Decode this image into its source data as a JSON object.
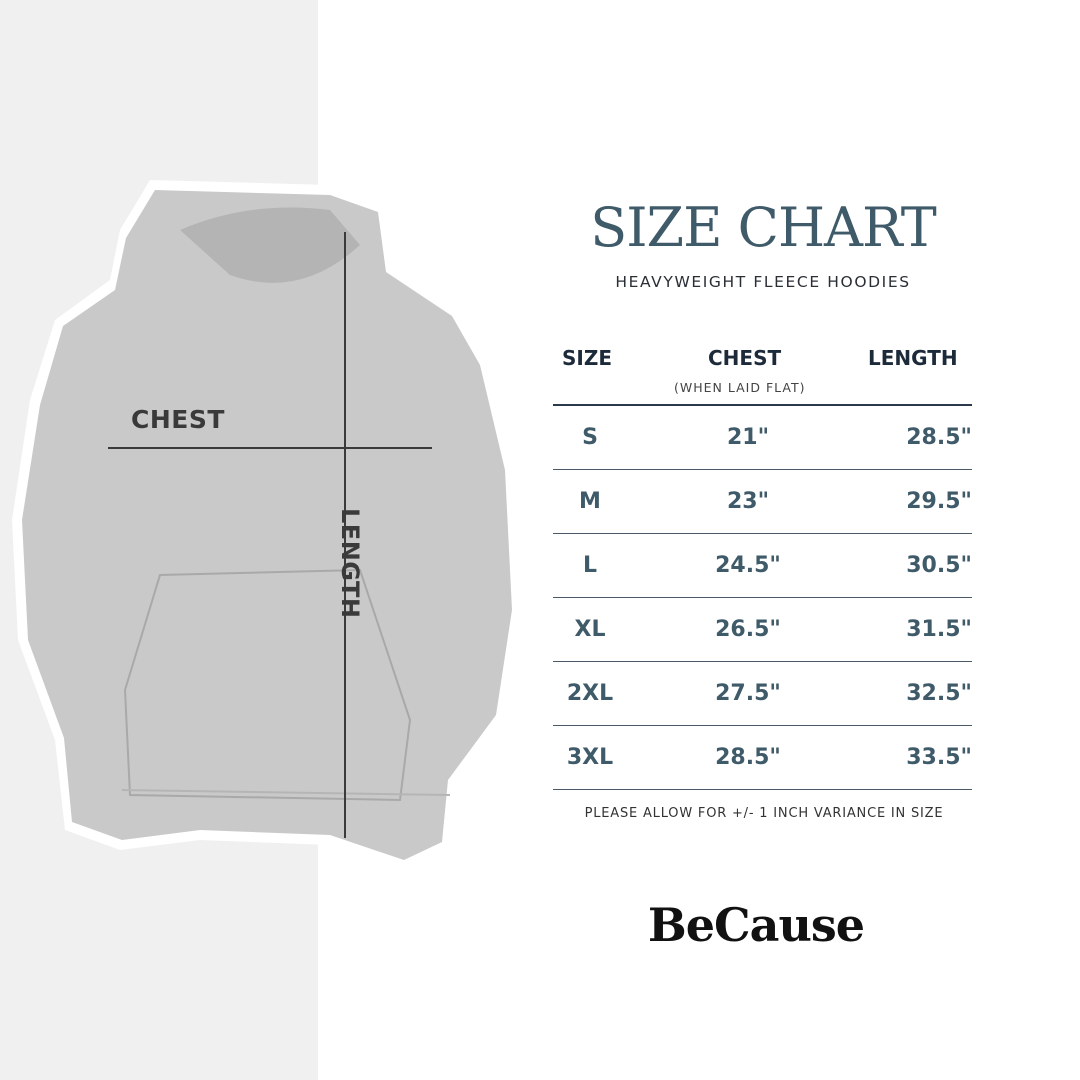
{
  "title": "SIZE CHART",
  "subtitle": "HEAVYWEIGHT FLEECE HOODIES",
  "image_labels": {
    "chest": "CHEST",
    "length": "LENGTH"
  },
  "table": {
    "headers": {
      "size": "SIZE",
      "chest": "CHEST",
      "chest_note": "(WHEN LAID FLAT)",
      "length": "LENGTH"
    },
    "rows": [
      {
        "size": "S",
        "chest": "21\"",
        "length": "28.5\""
      },
      {
        "size": "M",
        "chest": "23\"",
        "length": "29.5\""
      },
      {
        "size": "L",
        "chest": "24.5\"",
        "length": "30.5\""
      },
      {
        "size": "XL",
        "chest": "26.5\"",
        "length": "31.5\""
      },
      {
        "size": "2XL",
        "chest": "27.5\"",
        "length": "32.5\""
      },
      {
        "size": "3XL",
        "chest": "28.5\"",
        "length": "33.5\""
      }
    ]
  },
  "note": "PLEASE ALLOW FOR +/- 1 INCH VARIANCE IN SIZE",
  "brand": "BeCause",
  "colors": {
    "accent": "#3f5a69",
    "header": "#1c2a3a",
    "panel": "#f0f0f0",
    "hoodie": "#c9c9c9"
  }
}
